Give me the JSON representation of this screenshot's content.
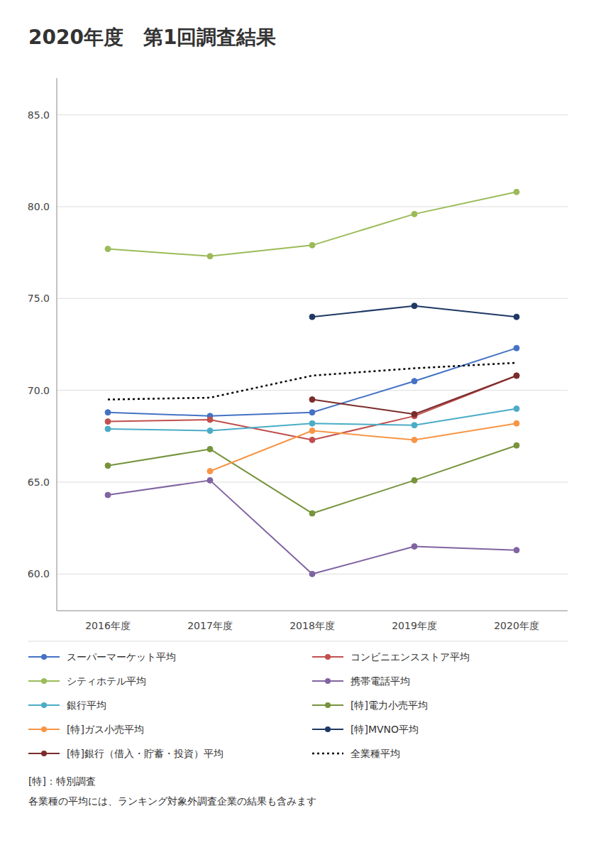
{
  "chart_data": {
    "type": "line",
    "title": "2020年度　第1回調査結果",
    "categories": [
      "2016年度",
      "2017年度",
      "2018年度",
      "2019年度",
      "2020年度"
    ],
    "ylim": [
      58.0,
      87.0
    ],
    "yticks": [
      {
        "value": 60.0,
        "label": "60.0"
      },
      {
        "value": 65.0,
        "label": "65.0"
      },
      {
        "value": 70.0,
        "label": "70.0"
      },
      {
        "value": 75.0,
        "label": "75.0"
      },
      {
        "value": 80.0,
        "label": "80.0"
      },
      {
        "value": 85.0,
        "label": "85.0"
      }
    ],
    "grid": true,
    "legend": "bottom",
    "series": [
      {
        "name": "スーパーマーケット平均",
        "color": "#4472c4",
        "line_style": "solid",
        "marker": "circle",
        "values": [
          68.8,
          68.6,
          68.8,
          70.5,
          72.3
        ]
      },
      {
        "name": "コンビニエンスストア平均",
        "color": "#c0504d",
        "line_style": "solid",
        "marker": "circle",
        "values": [
          68.3,
          68.4,
          67.3,
          68.6,
          70.8
        ]
      },
      {
        "name": "シティホテル平均",
        "color": "#9bbb59",
        "line_style": "solid",
        "marker": "circle",
        "values": [
          77.7,
          77.3,
          77.9,
          79.6,
          80.8
        ]
      },
      {
        "name": "携帯電話平均",
        "color": "#8064a2",
        "line_style": "solid",
        "marker": "circle",
        "values": [
          64.3,
          65.1,
          60.0,
          61.5,
          61.3
        ]
      },
      {
        "name": "銀行平均",
        "color": "#4bacc6",
        "line_style": "solid",
        "marker": "circle",
        "values": [
          67.9,
          67.8,
          68.2,
          68.1,
          69.0
        ]
      },
      {
        "name": "[特]電力小売平均",
        "color": "#77933c",
        "line_style": "solid",
        "marker": "circle",
        "values": [
          65.9,
          66.8,
          63.3,
          65.1,
          67.0
        ]
      },
      {
        "name": "[特]ガス小売平均",
        "color": "#f79646",
        "line_style": "solid",
        "marker": "circle",
        "values": [
          null,
          65.6,
          67.8,
          67.3,
          68.2
        ]
      },
      {
        "name": "[特]MVNO平均",
        "color": "#1f3864",
        "line_style": "solid",
        "marker": "circle",
        "values": [
          null,
          null,
          74.0,
          74.6,
          74.0
        ]
      },
      {
        "name": "[特]銀行（借入・貯蓄・投資）平均",
        "color": "#7b2c2c",
        "line_style": "solid",
        "marker": "circle",
        "values": [
          null,
          null,
          69.5,
          68.7,
          70.8
        ]
      },
      {
        "name": "全業種平均",
        "color": "#000000",
        "line_style": "dotted",
        "marker": "none",
        "values": [
          69.5,
          69.6,
          70.8,
          71.2,
          71.5
        ]
      }
    ],
    "annotations": [
      "[特]：特別調査",
      "各業種の平均には、ランキング対象外調査企業の結果も含みます"
    ]
  }
}
